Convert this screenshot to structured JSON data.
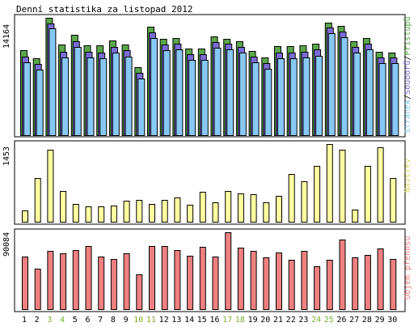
{
  "chart_data": [
    {
      "type": "bar",
      "title": "Denní statistika za listopad 2012",
      "ymax_label": "14164",
      "side_label_parts": [
        "Stránek",
        "/",
        "Souborů",
        "/",
        "Přístupů"
      ],
      "categories": [
        "1",
        "2",
        "3",
        "4",
        "5",
        "6",
        "7",
        "8",
        "9",
        "10",
        "11",
        "12",
        "13",
        "14",
        "15",
        "16",
        "17",
        "18",
        "19",
        "20",
        "21",
        "22",
        "23",
        "24",
        "25",
        "26",
        "27",
        "28",
        "29",
        "30"
      ],
      "weekend_days": [
        "3",
        "4",
        "10",
        "11",
        "17",
        "18",
        "24",
        "25"
      ],
      "colors": {
        "pristupu": "#5aa84a",
        "souboru": "#7a6cd6",
        "stranek": "#87c8f5"
      },
      "ylim": [
        0,
        14164
      ],
      "series": [
        {
          "name": "Přístupů",
          "values": [
            10300,
            9300,
            14164,
            10900,
            12100,
            10800,
            10800,
            11400,
            10900,
            8200,
            13100,
            11600,
            11700,
            10500,
            10500,
            11900,
            11600,
            11300,
            10200,
            9400,
            10700,
            10700,
            10800,
            11000,
            13600,
            13200,
            11300,
            11700,
            10100,
            10000
          ]
        },
        {
          "name": "Souborů",
          "values": [
            9900,
            9000,
            13900,
            10500,
            11700,
            10500,
            10400,
            11000,
            10600,
            7900,
            12800,
            11300,
            11400,
            10200,
            10200,
            11600,
            11400,
            11000,
            9900,
            9100,
            10400,
            10400,
            10500,
            10700,
            13400,
            12900,
            11000,
            11400,
            9800,
            9800
          ]
        },
        {
          "name": "Stránek",
          "values": [
            9600,
            8700,
            13700,
            10200,
            11400,
            10200,
            10100,
            10700,
            10300,
            7600,
            12500,
            11000,
            11100,
            9900,
            9900,
            11300,
            11100,
            10700,
            9600,
            8800,
            10100,
            10100,
            10200,
            10400,
            13100,
            12600,
            10700,
            11100,
            9500,
            9500
          ]
        }
      ]
    },
    {
      "type": "bar",
      "ymax_label": "1453",
      "side_label": "Návštěv",
      "color": "#ffffa0",
      "ylim": [
        0,
        1453
      ],
      "series": [
        {
          "name": "Návštěv",
          "values": [
            210,
            810,
            1350,
            570,
            340,
            290,
            290,
            300,
            400,
            410,
            340,
            410,
            450,
            320,
            560,
            360,
            570,
            530,
            510,
            360,
            480,
            900,
            760,
            1040,
            1453,
            1340,
            230,
            1040,
            1390,
            820
          ]
        }
      ]
    },
    {
      "type": "bar",
      "ymax_label": "90084",
      "side_label": "Objem přenosu",
      "color": "#f08080",
      "ylim": [
        0,
        90084
      ],
      "series": [
        {
          "name": "Objem přenosu",
          "values": [
            62000,
            47000,
            68000,
            65000,
            69000,
            74000,
            62000,
            59000,
            65000,
            41000,
            74000,
            74000,
            69000,
            63000,
            73000,
            62000,
            90084,
            72000,
            68000,
            61000,
            66000,
            58000,
            68000,
            50000,
            58000,
            82000,
            61000,
            64000,
            71000,
            59000
          ]
        }
      ]
    }
  ]
}
